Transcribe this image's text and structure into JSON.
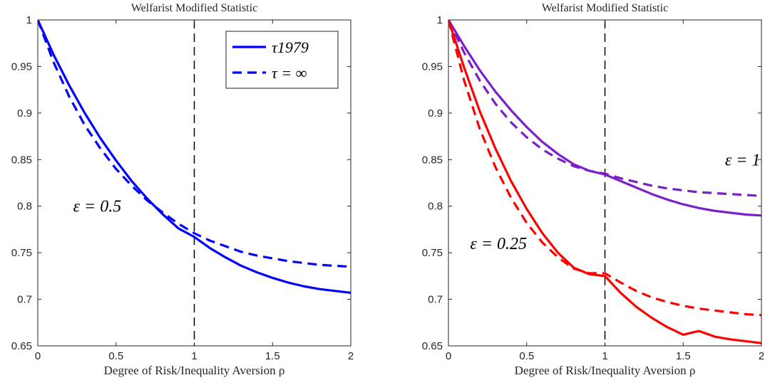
{
  "chart_data": [
    {
      "type": "line",
      "title": "Welfarist Modified Statistic",
      "xlabel": "Degree of Risk/Inequality Aversion ρ",
      "ylabel": "",
      "xlim": [
        0,
        2
      ],
      "ylim": [
        0.65,
        1
      ],
      "xticks": [
        "0",
        "0.5",
        "1",
        "1.5",
        "2"
      ],
      "yticks": [
        "0.65",
        "0.7",
        "0.75",
        "0.8",
        "0.85",
        "0.9",
        "0.95",
        "1"
      ],
      "grid": false,
      "legend_position": "top-right",
      "vline_x": 1,
      "legend": [
        {
          "label": "τ1979",
          "style": "solid",
          "color": "#0000ff"
        },
        {
          "label": "τ = ∞",
          "style": "dashed",
          "color": "#0000ff"
        }
      ],
      "annotations": [
        {
          "text": "ε = 0.5",
          "x": 0.38,
          "y": 0.8
        }
      ],
      "series": [
        {
          "color": "#0000ff",
          "style": "solid",
          "x": [
            0,
            0.1,
            0.2,
            0.3,
            0.4,
            0.5,
            0.6,
            0.7,
            0.8,
            0.9,
            1.0,
            1.1,
            1.2,
            1.3,
            1.4,
            1.5,
            1.6,
            1.7,
            1.8,
            1.9,
            2.0
          ],
          "y": [
            1.0,
            0.963,
            0.93,
            0.9,
            0.873,
            0.849,
            0.827,
            0.808,
            0.791,
            0.776,
            0.767,
            0.755,
            0.745,
            0.736,
            0.729,
            0.723,
            0.718,
            0.714,
            0.711,
            0.709,
            0.707
          ]
        },
        {
          "color": "#0000ff",
          "style": "dashed",
          "x": [
            0,
            0.1,
            0.2,
            0.3,
            0.4,
            0.5,
            0.6,
            0.7,
            0.8,
            0.9,
            1.0,
            1.1,
            1.2,
            1.3,
            1.4,
            1.5,
            1.6,
            1.7,
            1.8,
            1.9,
            2.0
          ],
          "y": [
            1.0,
            0.955,
            0.918,
            0.887,
            0.862,
            0.84,
            0.822,
            0.806,
            0.793,
            0.781,
            0.771,
            0.763,
            0.757,
            0.751,
            0.747,
            0.744,
            0.741,
            0.739,
            0.737,
            0.736,
            0.735
          ]
        }
      ]
    },
    {
      "type": "line",
      "title": "Welfarist Modified Statistic",
      "xlabel": "Degree of Risk/Inequality Aversion ρ",
      "ylabel": "",
      "xlim": [
        0,
        2
      ],
      "ylim": [
        0.65,
        1
      ],
      "xticks": [
        "0",
        "0.5",
        "1",
        "1.5",
        "2"
      ],
      "yticks": [
        "0.65",
        "0.7",
        "0.75",
        "0.8",
        "0.85",
        "0.9",
        "0.95",
        "1"
      ],
      "grid": false,
      "vline_x": 1,
      "annotations": [
        {
          "text": "ε = 1",
          "x": 1.88,
          "y": 0.85
        },
        {
          "text": "ε = 0.25",
          "x": 0.32,
          "y": 0.76
        }
      ],
      "series": [
        {
          "color": "#7b1fc8",
          "style": "solid",
          "x": [
            0,
            0.1,
            0.2,
            0.3,
            0.4,
            0.5,
            0.6,
            0.7,
            0.8,
            0.9,
            1.0,
            1.1,
            1.2,
            1.3,
            1.4,
            1.5,
            1.6,
            1.7,
            1.8,
            1.9,
            2.0
          ],
          "y": [
            1.0,
            0.972,
            0.946,
            0.923,
            0.903,
            0.885,
            0.869,
            0.856,
            0.845,
            0.838,
            0.834,
            0.827,
            0.82,
            0.813,
            0.807,
            0.802,
            0.798,
            0.795,
            0.793,
            0.791,
            0.79
          ]
        },
        {
          "color": "#7b1fc8",
          "style": "dashed",
          "x": [
            0,
            0.1,
            0.2,
            0.3,
            0.4,
            0.5,
            0.6,
            0.7,
            0.8,
            0.9,
            1.0,
            1.1,
            1.2,
            1.3,
            1.4,
            1.5,
            1.6,
            1.7,
            1.8,
            1.9,
            2.0
          ],
          "y": [
            1.0,
            0.965,
            0.935,
            0.91,
            0.89,
            0.874,
            0.861,
            0.851,
            0.843,
            0.838,
            0.835,
            0.83,
            0.826,
            0.822,
            0.819,
            0.817,
            0.815,
            0.814,
            0.813,
            0.812,
            0.811
          ]
        },
        {
          "color": "#ff0000",
          "style": "solid",
          "x": [
            0,
            0.1,
            0.2,
            0.3,
            0.4,
            0.5,
            0.6,
            0.7,
            0.8,
            0.9,
            1.0,
            1.1,
            1.2,
            1.3,
            1.4,
            1.5,
            1.6,
            1.7,
            1.8,
            1.9,
            2.0
          ],
          "y": [
            1.0,
            0.949,
            0.902,
            0.862,
            0.827,
            0.797,
            0.771,
            0.75,
            0.734,
            0.727,
            0.725,
            0.707,
            0.692,
            0.68,
            0.67,
            0.662,
            0.666,
            0.66,
            0.657,
            0.655,
            0.653
          ]
        },
        {
          "color": "#ff0000",
          "style": "dashed",
          "x": [
            0,
            0.1,
            0.2,
            0.3,
            0.4,
            0.5,
            0.6,
            0.7,
            0.8,
            0.9,
            1.0,
            1.1,
            1.2,
            1.3,
            1.4,
            1.5,
            1.6,
            1.7,
            1.8,
            1.9,
            2.0
          ],
          "y": [
            1.0,
            0.935,
            0.883,
            0.842,
            0.809,
            0.782,
            0.761,
            0.745,
            0.733,
            0.728,
            0.728,
            0.718,
            0.709,
            0.702,
            0.697,
            0.693,
            0.69,
            0.688,
            0.686,
            0.684,
            0.683
          ]
        }
      ]
    }
  ]
}
